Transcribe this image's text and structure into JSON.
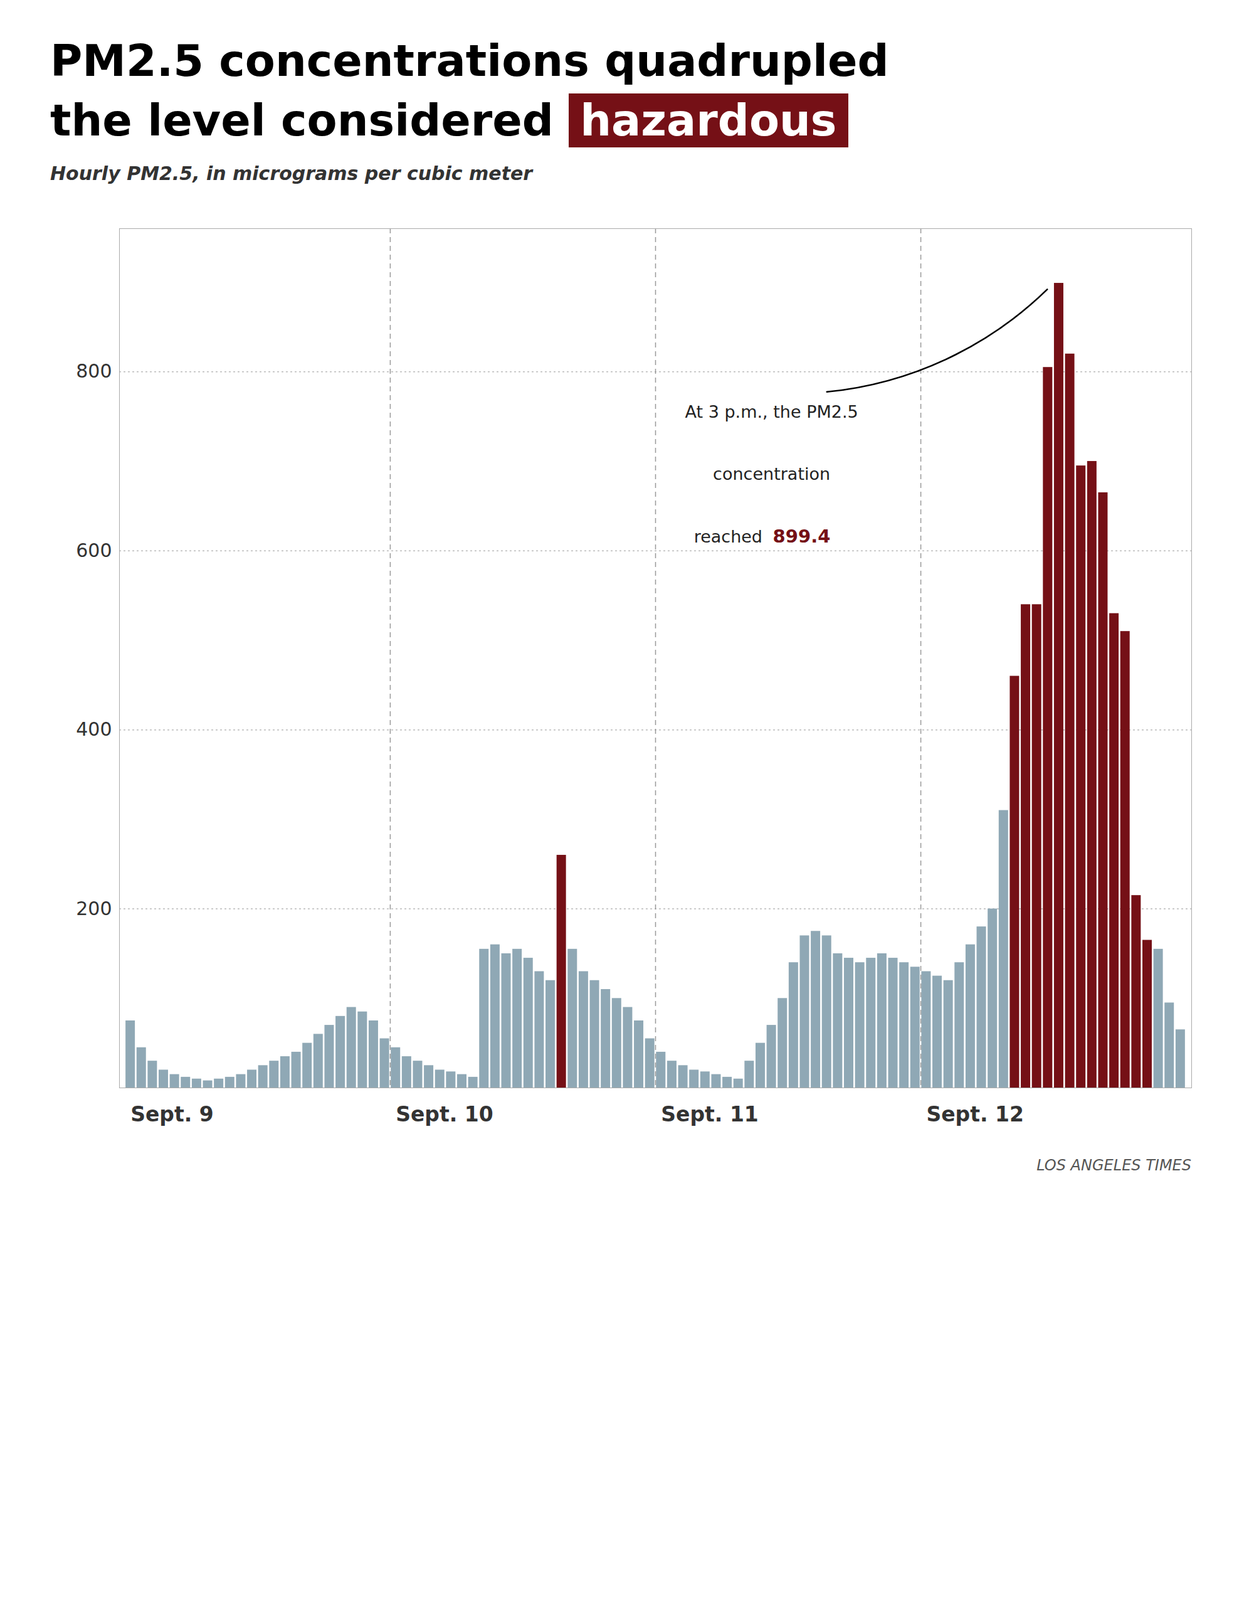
{
  "chart_data": {
    "type": "bar",
    "title": [
      "PM2.5 concentrations quadrupled",
      "the level considered hazardous"
    ],
    "title_highlight": "hazardous",
    "highlight_color": "#751016",
    "highlight_text_color": "#ffffff",
    "subtitle": "Hourly PM2.5, in micrograms per cubic meter",
    "caption": "LOS ANGELES TIMES",
    "annotation": {
      "lines": [
        "At 3 p.m., the PM2.5",
        "concentration",
        "reached "
      ],
      "value_label": "899.4"
    },
    "categories": [
      "Sept. 9",
      null,
      null,
      null,
      null,
      null,
      null,
      null,
      null,
      null,
      null,
      null,
      null,
      null,
      null,
      null,
      null,
      null,
      null,
      null,
      null,
      null,
      null,
      null,
      "Sept. 10",
      null,
      null,
      null,
      null,
      null,
      null,
      null,
      null,
      null,
      null,
      null,
      null,
      null,
      null,
      null,
      null,
      null,
      null,
      null,
      null,
      null,
      null,
      null,
      "Sept. 11",
      null,
      null,
      null,
      null,
      null,
      null,
      null,
      null,
      null,
      null,
      null,
      null,
      null,
      null,
      null,
      null,
      null,
      null,
      null,
      null,
      null,
      null,
      null,
      "Sept. 12",
      null,
      null,
      null,
      null,
      null,
      null,
      null,
      null,
      null,
      null,
      null,
      null,
      null,
      null,
      null,
      null,
      null,
      null,
      null,
      null,
      null,
      null,
      null
    ],
    "values": [
      75,
      45,
      30,
      20,
      15,
      12,
      10,
      8,
      10,
      12,
      15,
      20,
      25,
      30,
      35,
      40,
      50,
      60,
      70,
      80,
      90,
      85,
      75,
      55,
      45,
      35,
      30,
      25,
      20,
      18,
      15,
      12,
      155,
      160,
      150,
      155,
      145,
      130,
      120,
      260,
      155,
      130,
      120,
      110,
      100,
      90,
      75,
      55,
      40,
      30,
      25,
      20,
      18,
      15,
      12,
      10,
      30,
      50,
      70,
      100,
      140,
      170,
      175,
      170,
      150,
      145,
      140,
      145,
      150,
      145,
      140,
      135,
      130,
      125,
      120,
      140,
      160,
      180,
      200,
      310,
      460,
      540,
      540,
      805,
      899,
      820,
      695,
      700,
      665,
      530,
      510,
      215,
      165,
      155,
      95,
      65
    ],
    "colors": [
      "#8fa8b5",
      "#8fa8b5",
      "#8fa8b5",
      "#8fa8b5",
      "#8fa8b5",
      "#8fa8b5",
      "#8fa8b5",
      "#8fa8b5",
      "#8fa8b5",
      "#8fa8b5",
      "#8fa8b5",
      "#8fa8b5",
      "#8fa8b5",
      "#8fa8b5",
      "#8fa8b5",
      "#8fa8b5",
      "#8fa8b5",
      "#8fa8b5",
      "#8fa8b5",
      "#8fa8b5",
      "#8fa8b5",
      "#8fa8b5",
      "#8fa8b5",
      "#8fa8b5",
      "#8fa8b5",
      "#8fa8b5",
      "#8fa8b5",
      "#8fa8b5",
      "#8fa8b5",
      "#8fa8b5",
      "#8fa8b5",
      "#8fa8b5",
      "#8fa8b5",
      "#8fa8b5",
      "#8fa8b5",
      "#8fa8b5",
      "#8fa8b5",
      "#8fa8b5",
      "#8fa8b5",
      "#751016",
      "#8fa8b5",
      "#8fa8b5",
      "#8fa8b5",
      "#8fa8b5",
      "#8fa8b5",
      "#8fa8b5",
      "#8fa8b5",
      "#8fa8b5",
      "#8fa8b5",
      "#8fa8b5",
      "#8fa8b5",
      "#8fa8b5",
      "#8fa8b5",
      "#8fa8b5",
      "#8fa8b5",
      "#8fa8b5",
      "#8fa8b5",
      "#8fa8b5",
      "#8fa8b5",
      "#8fa8b5",
      "#8fa8b5",
      "#8fa8b5",
      "#8fa8b5",
      "#8fa8b5",
      "#8fa8b5",
      "#8fa8b5",
      "#8fa8b5",
      "#8fa8b5",
      "#8fa8b5",
      "#8fa8b5",
      "#8fa8b5",
      "#8fa8b5",
      "#8fa8b5",
      "#8fa8b5",
      "#8fa8b5",
      "#8fa8b5",
      "#8fa8b5",
      "#8fa8b5",
      "#8fa8b5",
      "#8fa8b5",
      "#751016",
      "#751016",
      "#751016",
      "#751016",
      "#751016",
      "#751016",
      "#751016",
      "#751016",
      "#751016",
      "#751016",
      "#751016",
      "#751016",
      "#751016",
      "#8fa8b5",
      "#8fa8b5",
      "#8fa8b5"
    ],
    "ylim": [
      0,
      960
    ],
    "yticks": [
      200,
      400,
      600,
      800
    ],
    "grid": true
  }
}
